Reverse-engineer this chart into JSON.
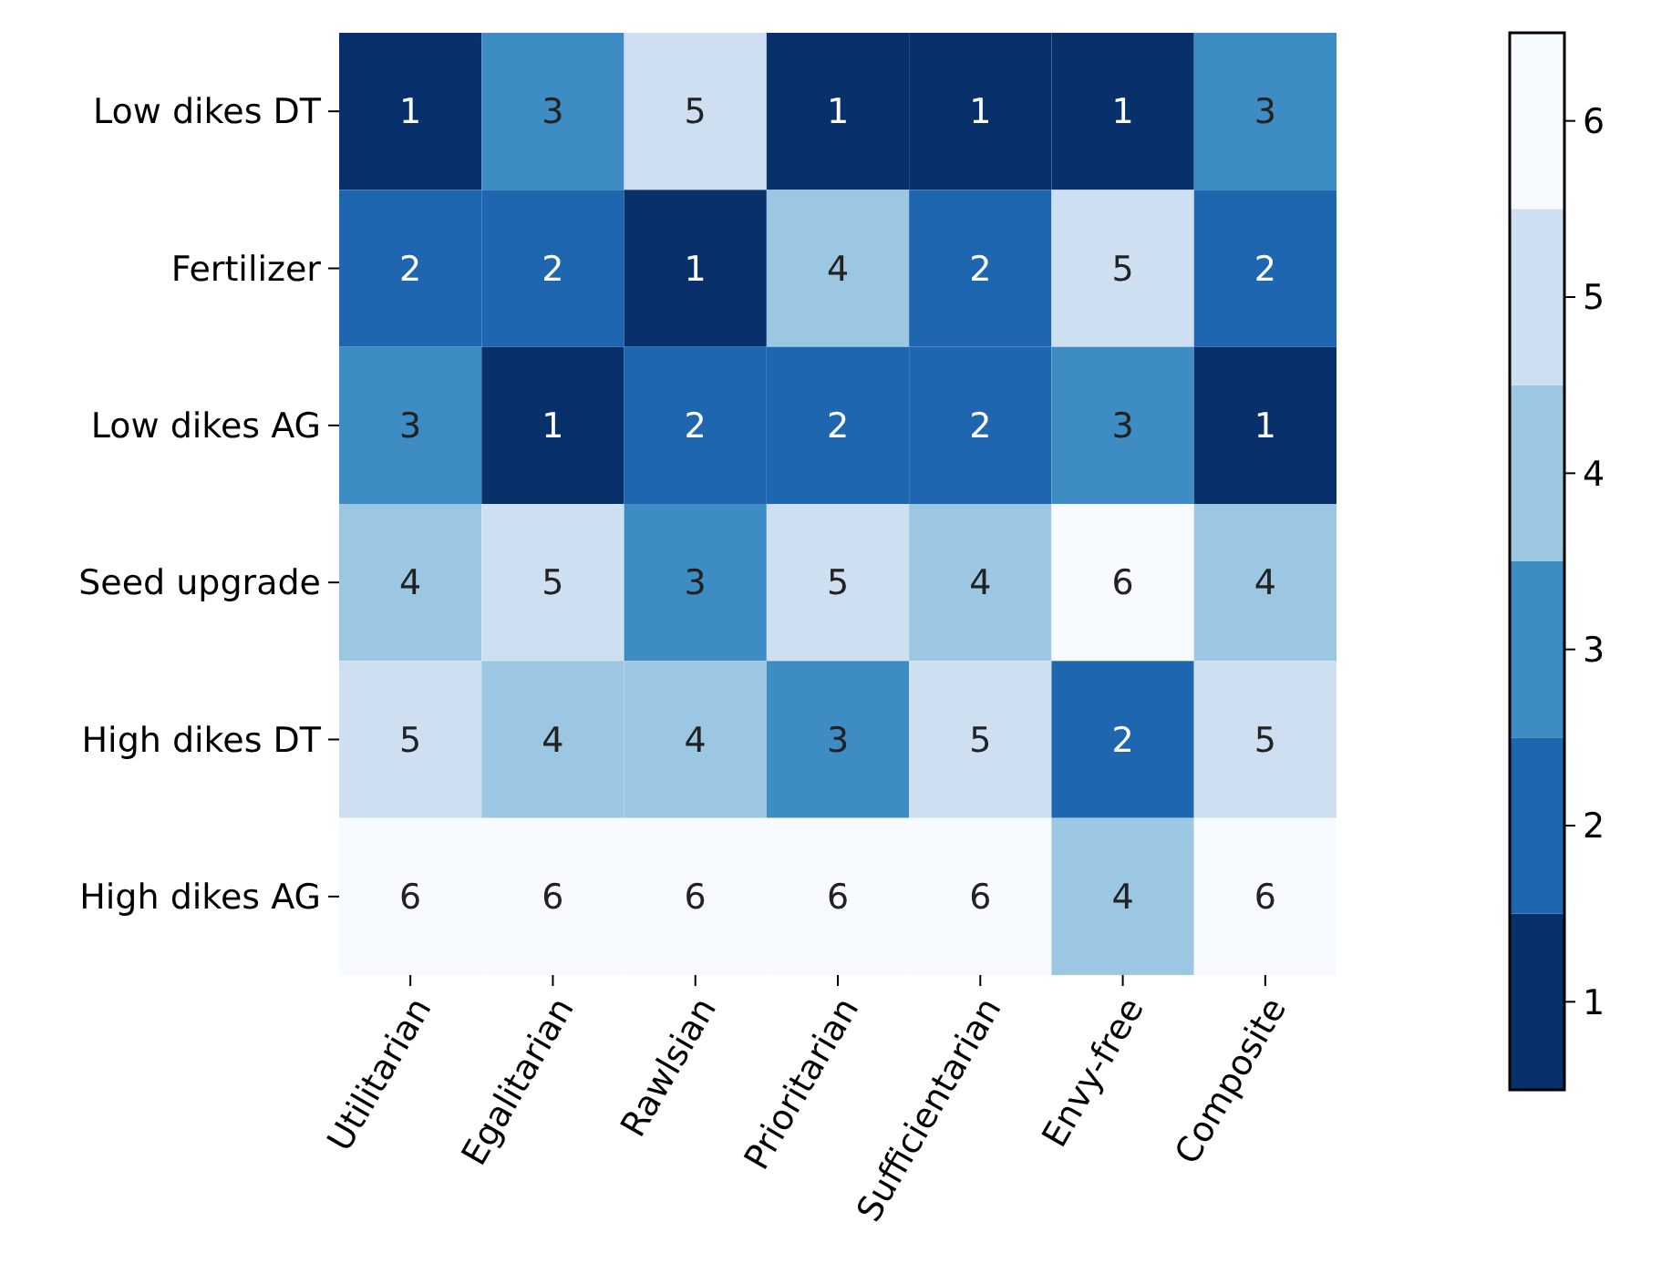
{
  "chart_data": {
    "type": "heatmap",
    "categories": [
      "Utilitarian",
      "Egalitarian",
      "Rawlsian",
      "Prioritarian",
      "Sufficientarian",
      "Envy-free",
      "Composite"
    ],
    "y_categories": [
      "Low dikes DT",
      "Fertilizer",
      "Low dikes AG",
      "Seed upgrade",
      "High dikes DT",
      "High dikes AG"
    ],
    "cells": [
      [
        1,
        3,
        5,
        1,
        1,
        1,
        3
      ],
      [
        2,
        2,
        1,
        4,
        2,
        5,
        2
      ],
      [
        3,
        1,
        2,
        2,
        2,
        3,
        1
      ],
      [
        4,
        5,
        3,
        5,
        4,
        6,
        4
      ],
      [
        5,
        4,
        4,
        3,
        5,
        2,
        5
      ],
      [
        6,
        6,
        6,
        6,
        6,
        4,
        6
      ]
    ],
    "data_labels": true,
    "clim": [
      0.5,
      6.5
    ],
    "cticks": [
      1,
      2,
      3,
      4,
      5,
      6
    ]
  }
}
